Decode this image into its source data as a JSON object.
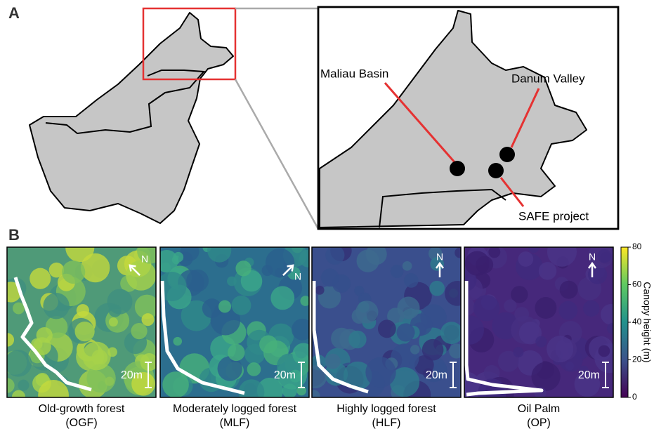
{
  "panel_a": {
    "label": "A",
    "sites": [
      "Maliau Basin",
      "Danum Valley",
      "SAFE project"
    ]
  },
  "panel_b": {
    "label": "B",
    "panels": [
      {
        "name": "Old-growth forest",
        "abbr": "(OGF)",
        "north": "N",
        "scale": "20m"
      },
      {
        "name": "Moderately logged forest",
        "abbr": "(MLF)",
        "north": "N",
        "scale": "20m"
      },
      {
        "name": "Highly logged forest",
        "abbr": "(HLF)",
        "north": "N",
        "scale": "20m"
      },
      {
        "name": "Oil Palm",
        "abbr": "(OP)",
        "north": "N",
        "scale": "20m"
      }
    ],
    "colorbar": {
      "label": "Canopy height (m)",
      "lim": [
        0,
        80
      ],
      "ticks": [
        0,
        20,
        40,
        60,
        80
      ]
    }
  }
}
